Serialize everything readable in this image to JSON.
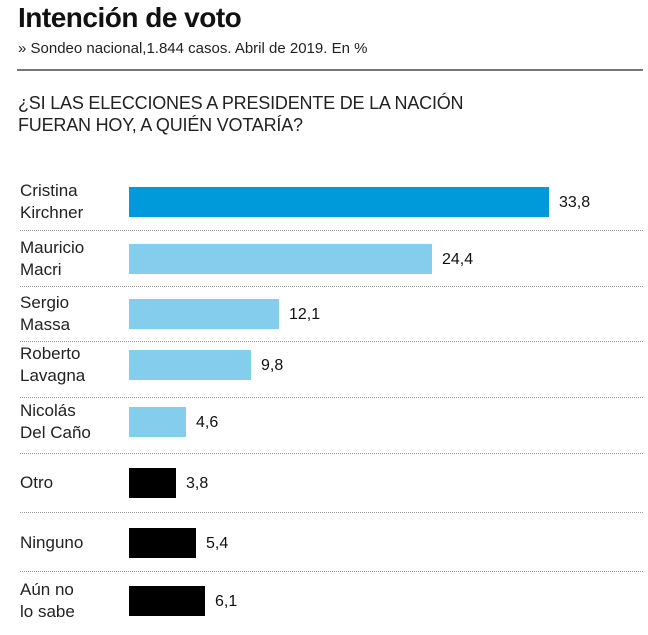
{
  "header": {
    "title": "Intención de voto",
    "subtitle": "» Sondeo nacional,1.844 casos. Abril de 2019. En %",
    "question_line1": "¿SI LAS ELECCIONES A PRESIDENTE DE LA NACIÓN",
    "question_line2": "FUERAN HOY, A QUIÉN VOTARÍA?"
  },
  "colors": {
    "leader": "#009ADA",
    "candidate": "#84CDEC",
    "other": "#000000"
  },
  "chart_data": {
    "type": "bar",
    "orientation": "horizontal",
    "title": "Intención de voto",
    "subtitle": "» Sondeo nacional,1.844 casos. Abril de 2019. En %",
    "xlabel": "",
    "ylabel": "",
    "grid": false,
    "xlim": [
      0,
      33.8
    ],
    "categories": [
      [
        "Cristina",
        "Kirchner"
      ],
      [
        "Mauricio",
        "Macri"
      ],
      [
        "Sergio",
        "Massa"
      ],
      [
        "Roberto",
        "Lavagna"
      ],
      [
        "Nicolás",
        "Del Caño"
      ],
      [
        "Otro"
      ],
      [
        "Ninguno"
      ],
      [
        "Aún no",
        "lo sabe"
      ]
    ],
    "values": [
      33.8,
      24.4,
      12.1,
      9.8,
      4.6,
      3.8,
      5.4,
      6.1
    ],
    "value_labels": [
      "33,8",
      "24,4",
      "12,1",
      "9,8",
      "4,6",
      "3,8",
      "5,4",
      "6,1"
    ],
    "color_groups": [
      "leader",
      "candidate",
      "candidate",
      "candidate",
      "candidate",
      "other",
      "other",
      "other"
    ]
  }
}
